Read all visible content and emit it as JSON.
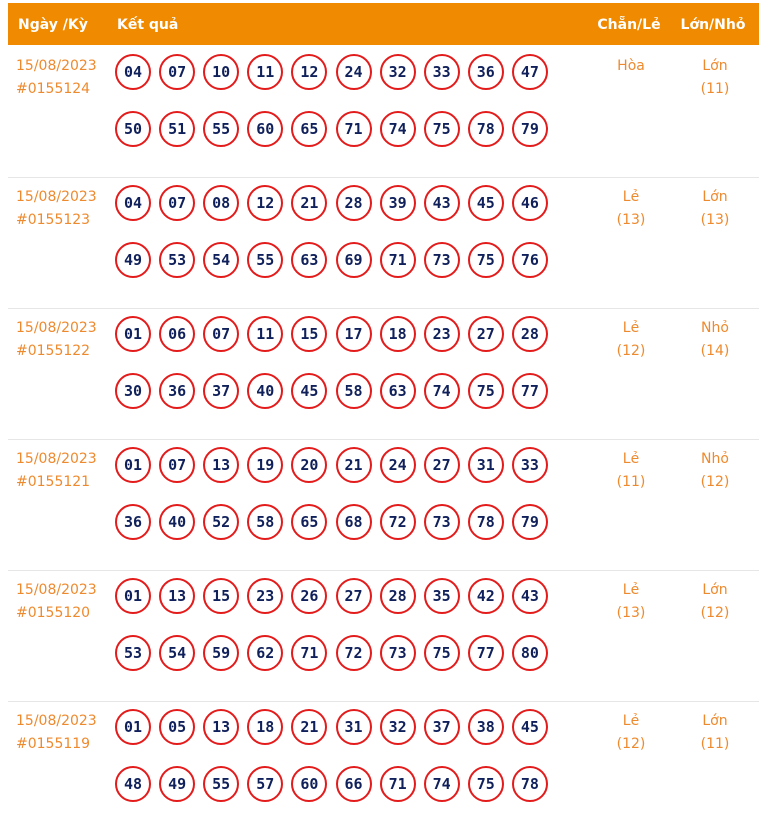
{
  "header": {
    "date": "Ngày /Kỳ",
    "result": "Kết quả",
    "parity": "Chẵn/Lẻ",
    "size": "Lớn/Nhỏ"
  },
  "rows": [
    {
      "date": "15/08/2023",
      "draw": "#0155124",
      "numbers": [
        "04",
        "07",
        "10",
        "11",
        "12",
        "24",
        "32",
        "33",
        "36",
        "47",
        "50",
        "51",
        "55",
        "60",
        "65",
        "71",
        "74",
        "75",
        "78",
        "79"
      ],
      "parity": {
        "label": "Hòa"
      },
      "size": {
        "label": "Lớn",
        "count": "(11)"
      }
    },
    {
      "date": "15/08/2023",
      "draw": "#0155123",
      "numbers": [
        "04",
        "07",
        "08",
        "12",
        "21",
        "28",
        "39",
        "43",
        "45",
        "46",
        "49",
        "53",
        "54",
        "55",
        "63",
        "69",
        "71",
        "73",
        "75",
        "76"
      ],
      "parity": {
        "label": "Lẻ",
        "count": "(13)"
      },
      "size": {
        "label": "Lớn",
        "count": "(13)"
      }
    },
    {
      "date": "15/08/2023",
      "draw": "#0155122",
      "numbers": [
        "01",
        "06",
        "07",
        "11",
        "15",
        "17",
        "18",
        "23",
        "27",
        "28",
        "30",
        "36",
        "37",
        "40",
        "45",
        "58",
        "63",
        "74",
        "75",
        "77"
      ],
      "parity": {
        "label": "Lẻ",
        "count": "(12)"
      },
      "size": {
        "label": "Nhỏ",
        "count": "(14)"
      }
    },
    {
      "date": "15/08/2023",
      "draw": "#0155121",
      "numbers": [
        "01",
        "07",
        "13",
        "19",
        "20",
        "21",
        "24",
        "27",
        "31",
        "33",
        "36",
        "40",
        "52",
        "58",
        "65",
        "68",
        "72",
        "73",
        "78",
        "79"
      ],
      "parity": {
        "label": "Lẻ",
        "count": "(11)"
      },
      "size": {
        "label": "Nhỏ",
        "count": "(12)"
      }
    },
    {
      "date": "15/08/2023",
      "draw": "#0155120",
      "numbers": [
        "01",
        "13",
        "15",
        "23",
        "26",
        "27",
        "28",
        "35",
        "42",
        "43",
        "53",
        "54",
        "59",
        "62",
        "71",
        "72",
        "73",
        "75",
        "77",
        "80"
      ],
      "parity": {
        "label": "Lẻ",
        "count": "(13)"
      },
      "size": {
        "label": "Lớn",
        "count": "(12)"
      }
    },
    {
      "date": "15/08/2023",
      "draw": "#0155119",
      "numbers": [
        "01",
        "05",
        "13",
        "18",
        "21",
        "31",
        "32",
        "37",
        "38",
        "45",
        "48",
        "49",
        "55",
        "57",
        "60",
        "66",
        "71",
        "74",
        "75",
        "78"
      ],
      "parity": {
        "label": "Lẻ",
        "count": "(12)"
      },
      "size": {
        "label": "Lớn",
        "count": "(11)"
      }
    }
  ]
}
